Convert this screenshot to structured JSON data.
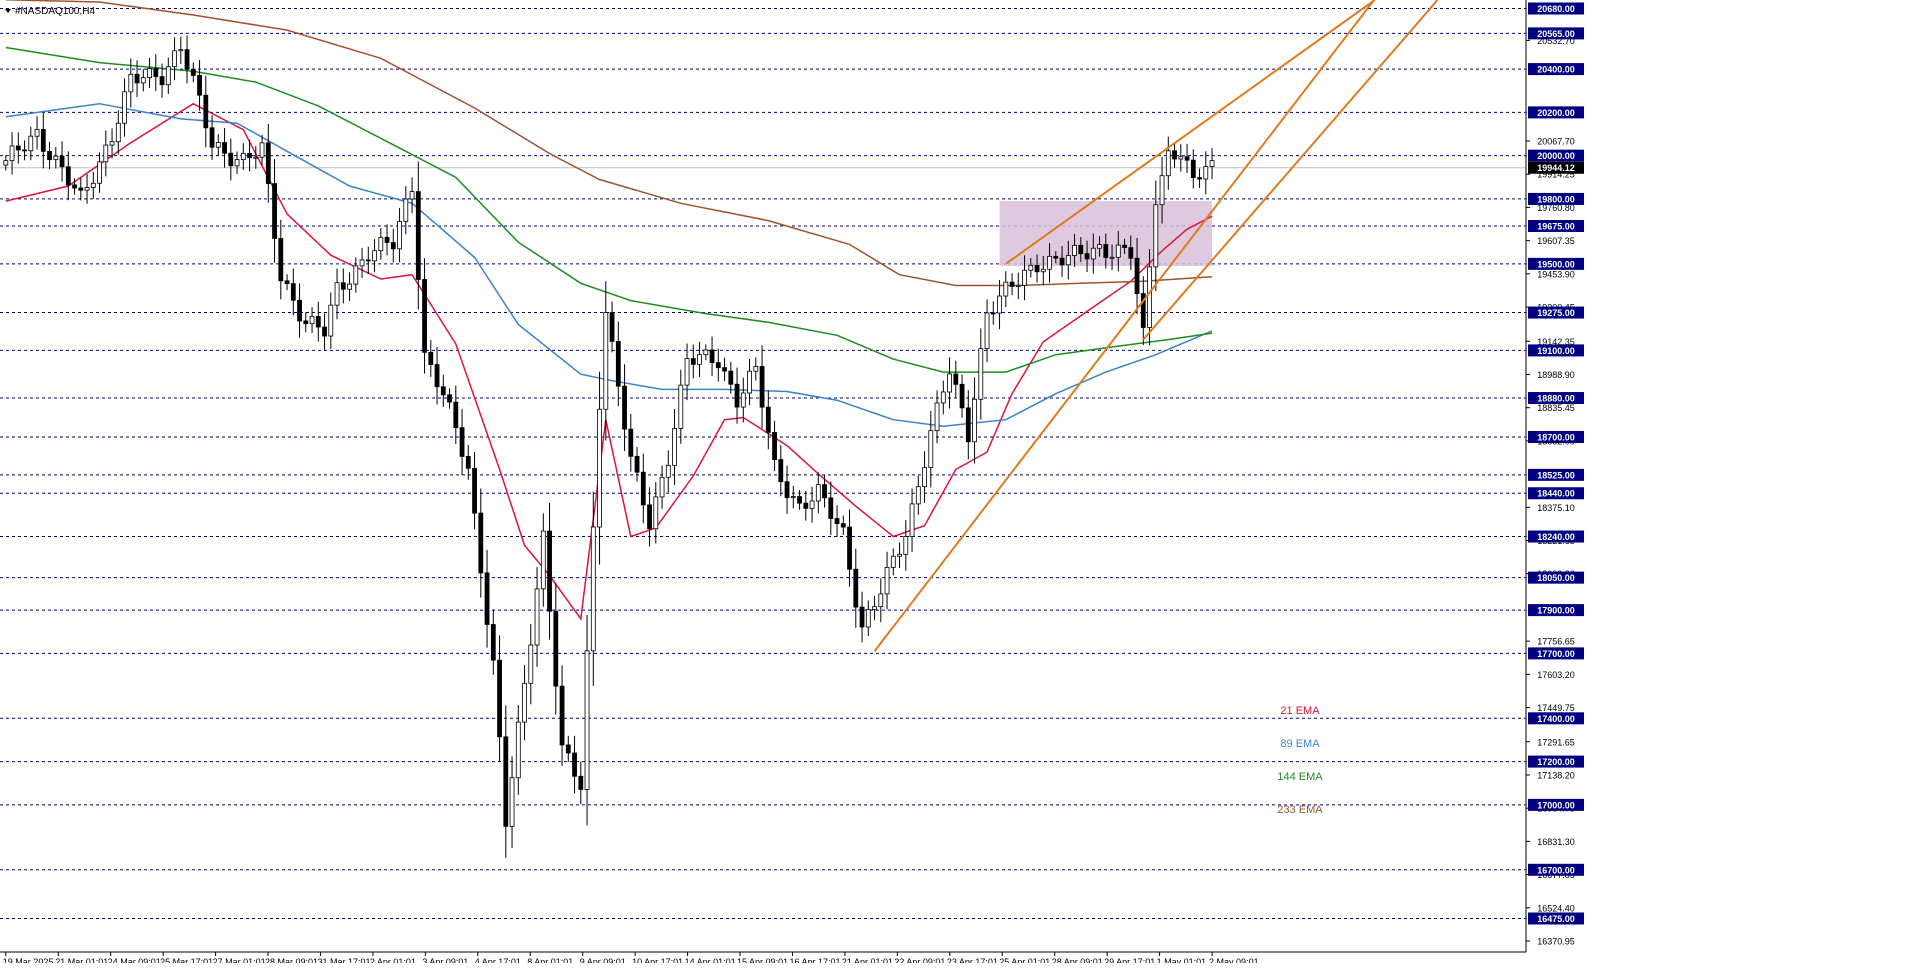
{
  "window": {
    "title": "#NASDAQ100,H4",
    "menu_icon": "triangle-down-icon"
  },
  "colors": {
    "ema21": "#dc143c",
    "ema89": "#3c82c8",
    "ema144": "#1e8c1e",
    "ema233": "#a0522d",
    "trend": "#e07a1f",
    "zone": "#d8bfd8",
    "level": "#000080",
    "axis_text": "#000000"
  },
  "chart_data": {
    "type": "candlestick",
    "title": "#NASDAQ100,H4",
    "ylim": [
      16300,
      20800
    ],
    "y_ticks": [
      20532.7,
      20067.7,
      19914.25,
      19760.8,
      19607.35,
      19453.9,
      19300.45,
      19142.35,
      18988.9,
      18835.45,
      18682.0,
      18375.1,
      18221.65,
      18068.2,
      17756.65,
      17603.2,
      17449.75,
      17291.65,
      17138.2,
      16984.75,
      16831.3,
      16677.85,
      16524.4,
      16370.95
    ],
    "levels": [
      20680.0,
      20565.0,
      20400.0,
      20200.0,
      20000.0,
      19800.0,
      19675.0,
      19500.0,
      19275.0,
      19100.0,
      18880.0,
      18700.0,
      18525.0,
      18440.0,
      18240.0,
      18050.0,
      17900.0,
      17700.0,
      17400.0,
      17200.0,
      17000.0,
      16700.0,
      16475.0
    ],
    "current_price": 19944.12,
    "x_labels": [
      "19 Mar 2025",
      "21 Mar 01:01",
      "24 Mar 09:01",
      "25 Mar 17:01",
      "27 Mar 01:01",
      "28 Mar 09:01",
      "31 Mar 17:01",
      "2 Apr 01:01",
      "3 Apr 09:01",
      "4 Apr 17:01",
      "8 Apr 01:01",
      "9 Apr 09:01",
      "10 Apr 17:01",
      "14 Apr 01:01",
      "15 Apr 09:01",
      "16 Apr 17:01",
      "21 Apr 01:01",
      "22 Apr 09:01",
      "23 Apr 17:01",
      "25 Apr 01:01",
      "28 Apr 09:01",
      "29 Apr 17:01",
      "1 May 01:01",
      "2 May 09:01"
    ],
    "candle_count": 194,
    "anchors": [
      {
        "i": 0,
        "p": 19960
      },
      {
        "i": 5,
        "p": 20110
      },
      {
        "i": 12,
        "p": 19790
      },
      {
        "i": 17,
        "p": 20100
      },
      {
        "i": 20,
        "p": 20340
      },
      {
        "i": 25,
        "p": 20380
      },
      {
        "i": 28,
        "p": 20510
      },
      {
        "i": 30,
        "p": 20330
      },
      {
        "i": 33,
        "p": 20050
      },
      {
        "i": 38,
        "p": 19980
      },
      {
        "i": 41,
        "p": 20020
      },
      {
        "i": 44,
        "p": 19450
      },
      {
        "i": 48,
        "p": 19230
      },
      {
        "i": 51,
        "p": 19180
      },
      {
        "i": 53,
        "p": 19380
      },
      {
        "i": 58,
        "p": 19550
      },
      {
        "i": 62,
        "p": 19590
      },
      {
        "i": 65,
        "p": 19870
      },
      {
        "i": 67,
        "p": 19080
      },
      {
        "i": 70,
        "p": 18890
      },
      {
        "i": 74,
        "p": 18560
      },
      {
        "i": 78,
        "p": 17650
      },
      {
        "i": 80,
        "p": 16910
      },
      {
        "i": 83,
        "p": 17550
      },
      {
        "i": 86,
        "p": 18250
      },
      {
        "i": 89,
        "p": 17250
      },
      {
        "i": 92,
        "p": 17080
      },
      {
        "i": 95,
        "p": 18880
      },
      {
        "i": 96,
        "p": 19300
      },
      {
        "i": 100,
        "p": 18580
      },
      {
        "i": 103,
        "p": 18300
      },
      {
        "i": 106,
        "p": 18620
      },
      {
        "i": 109,
        "p": 19050
      },
      {
        "i": 114,
        "p": 19060
      },
      {
        "i": 117,
        "p": 18880
      },
      {
        "i": 120,
        "p": 19000
      },
      {
        "i": 123,
        "p": 18560
      },
      {
        "i": 127,
        "p": 18380
      },
      {
        "i": 130,
        "p": 18430
      },
      {
        "i": 134,
        "p": 18260
      },
      {
        "i": 137,
        "p": 17820
      },
      {
        "i": 140,
        "p": 17980
      },
      {
        "i": 144,
        "p": 18260
      },
      {
        "i": 148,
        "p": 18720
      },
      {
        "i": 151,
        "p": 19000
      },
      {
        "i": 154,
        "p": 18720
      },
      {
        "i": 157,
        "p": 19280
      },
      {
        "i": 161,
        "p": 19390
      },
      {
        "i": 165,
        "p": 19510
      },
      {
        "i": 170,
        "p": 19520
      },
      {
        "i": 175,
        "p": 19580
      },
      {
        "i": 180,
        "p": 19540
      },
      {
        "i": 182,
        "p": 19160
      },
      {
        "i": 184,
        "p": 19820
      },
      {
        "i": 186,
        "p": 20010
      },
      {
        "i": 188,
        "p": 20020
      },
      {
        "i": 190,
        "p": 19860
      },
      {
        "i": 192,
        "p": 19950
      },
      {
        "i": 193,
        "p": 19944
      }
    ],
    "ema_lines": [
      {
        "name": "21 EMA",
        "color": "#dc143c",
        "points": [
          [
            0,
            19790
          ],
          [
            10,
            19860
          ],
          [
            20,
            20060
          ],
          [
            30,
            20240
          ],
          [
            38,
            20120
          ],
          [
            45,
            19730
          ],
          [
            52,
            19540
          ],
          [
            60,
            19430
          ],
          [
            65,
            19450
          ],
          [
            72,
            19130
          ],
          [
            79,
            18550
          ],
          [
            83,
            18200
          ],
          [
            87,
            18060
          ],
          [
            92,
            17860
          ],
          [
            96,
            18780
          ],
          [
            100,
            18240
          ],
          [
            104,
            18280
          ],
          [
            110,
            18520
          ],
          [
            115,
            18780
          ],
          [
            118,
            18790
          ],
          [
            125,
            18660
          ],
          [
            130,
            18530
          ],
          [
            136,
            18380
          ],
          [
            142,
            18240
          ],
          [
            147,
            18290
          ],
          [
            152,
            18550
          ],
          [
            157,
            18630
          ],
          [
            161,
            18900
          ],
          [
            166,
            19140
          ],
          [
            171,
            19240
          ],
          [
            175,
            19320
          ],
          [
            180,
            19420
          ],
          [
            185,
            19560
          ],
          [
            189,
            19660
          ],
          [
            193,
            19720
          ]
        ]
      },
      {
        "name": "89 EMA",
        "color": "#3c82c8",
        "points": [
          [
            0,
            20180
          ],
          [
            15,
            20240
          ],
          [
            28,
            20170
          ],
          [
            37,
            20150
          ],
          [
            45,
            20020
          ],
          [
            55,
            19860
          ],
          [
            65,
            19780
          ],
          [
            75,
            19530
          ],
          [
            82,
            19220
          ],
          [
            92,
            18990
          ],
          [
            97,
            18960
          ],
          [
            105,
            18920
          ],
          [
            115,
            18920
          ],
          [
            125,
            18910
          ],
          [
            133,
            18870
          ],
          [
            142,
            18780
          ],
          [
            150,
            18750
          ],
          [
            160,
            18780
          ],
          [
            168,
            18900
          ],
          [
            176,
            19000
          ],
          [
            184,
            19080
          ],
          [
            193,
            19190
          ]
        ]
      },
      {
        "name": "144 EMA",
        "color": "#1e8c1e",
        "points": [
          [
            0,
            20500
          ],
          [
            15,
            20430
          ],
          [
            30,
            20390
          ],
          [
            40,
            20340
          ],
          [
            50,
            20230
          ],
          [
            62,
            20050
          ],
          [
            72,
            19900
          ],
          [
            82,
            19600
          ],
          [
            92,
            19410
          ],
          [
            100,
            19330
          ],
          [
            112,
            19270
          ],
          [
            122,
            19230
          ],
          [
            133,
            19170
          ],
          [
            142,
            19060
          ],
          [
            150,
            19000
          ],
          [
            160,
            19000
          ],
          [
            168,
            19080
          ],
          [
            178,
            19120
          ],
          [
            186,
            19150
          ],
          [
            193,
            19180
          ]
        ]
      },
      {
        "name": "233 EMA",
        "color": "#a0522d",
        "points": [
          [
            0,
            20720
          ],
          [
            15,
            20710
          ],
          [
            30,
            20650
          ],
          [
            45,
            20580
          ],
          [
            60,
            20450
          ],
          [
            75,
            20220
          ],
          [
            87,
            20010
          ],
          [
            95,
            19890
          ],
          [
            108,
            19780
          ],
          [
            122,
            19700
          ],
          [
            135,
            19590
          ],
          [
            143,
            19450
          ],
          [
            152,
            19400
          ],
          [
            162,
            19400
          ],
          [
            172,
            19410
          ],
          [
            182,
            19420
          ],
          [
            193,
            19440
          ]
        ]
      }
    ],
    "trend_lines": [
      {
        "from": [
          139,
          17710
        ],
        "to": [
          220,
          20760
        ]
      },
      {
        "from": [
          182,
          19150
        ],
        "to": [
          230,
          20750
        ]
      },
      {
        "from": [
          160,
          19500
        ],
        "to": [
          221,
          20760
        ]
      }
    ],
    "rectangle": {
      "i0": 159,
      "i1": 193,
      "p0": 19790,
      "p1": 19490
    },
    "legend": [
      {
        "label": "21 EMA",
        "color": "#dc143c"
      },
      {
        "label": "89 EMA",
        "color": "#3c82c8"
      },
      {
        "label": "144 EMA",
        "color": "#1e8c1e"
      },
      {
        "label": "233 EMA",
        "color": "#a0522d"
      }
    ]
  }
}
